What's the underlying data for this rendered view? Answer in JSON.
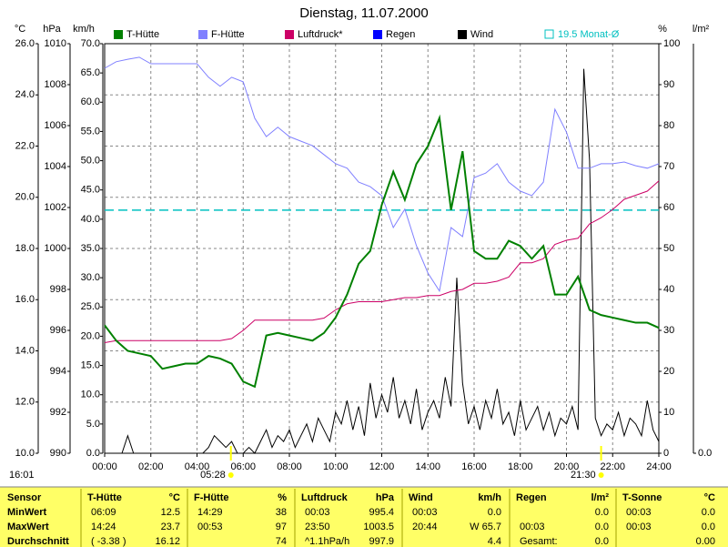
{
  "chart_data": {
    "type": "line",
    "title": "Dienstag, 11.07.2000",
    "updated": "16:01",
    "grid": true,
    "xlim": [
      0,
      24
    ],
    "xticks": [
      {
        "value": 0,
        "label": "00:00"
      },
      {
        "value": 2,
        "label": "02:00"
      },
      {
        "value": 4,
        "label": "04:00"
      },
      {
        "value": 6,
        "label": "06:00"
      },
      {
        "value": 8,
        "label": "08:00"
      },
      {
        "value": 10,
        "label": "10:00"
      },
      {
        "value": 12,
        "label": "12:00"
      },
      {
        "value": 14,
        "label": "14:00"
      },
      {
        "value": 16,
        "label": "16:00"
      },
      {
        "value": 18,
        "label": "18:00"
      },
      {
        "value": 20,
        "label": "20:00"
      },
      {
        "value": 22,
        "label": "22:00"
      },
      {
        "value": 24,
        "label": "24:00"
      }
    ],
    "axes": [
      {
        "id": "temp",
        "label": "°C",
        "side": "left",
        "lim": [
          10,
          26
        ],
        "ticks": [
          {
            "value": 10,
            "label": "10.0"
          },
          {
            "value": 12,
            "label": "12.0"
          },
          {
            "value": 14,
            "label": "14.0"
          },
          {
            "value": 16,
            "label": "16.0"
          },
          {
            "value": 18,
            "label": "18.0"
          },
          {
            "value": 20,
            "label": "20.0"
          },
          {
            "value": 22,
            "label": "22.0"
          },
          {
            "value": 24,
            "label": "24.0"
          },
          {
            "value": 26,
            "label": "26.0"
          }
        ]
      },
      {
        "id": "hpa",
        "label": "hPa",
        "side": "left",
        "lim": [
          990,
          1010
        ],
        "ticks": [
          990,
          992,
          994,
          996,
          998,
          1000,
          1002,
          1004,
          1006,
          1008,
          1010
        ]
      },
      {
        "id": "kmh",
        "label": "km/h",
        "side": "left",
        "lim": [
          0,
          70
        ],
        "ticks": [
          {
            "value": 0,
            "label": "0.0"
          },
          {
            "value": 5,
            "label": "5.0"
          },
          {
            "value": 10,
            "label": "10.0"
          },
          {
            "value": 15,
            "label": "15.0"
          },
          {
            "value": 20,
            "label": "20.0"
          },
          {
            "value": 25,
            "label": "25.0"
          },
          {
            "value": 30,
            "label": "30.0"
          },
          {
            "value": 35,
            "label": "35.0"
          },
          {
            "value": 40,
            "label": "40.0"
          },
          {
            "value": 45,
            "label": "45.0"
          },
          {
            "value": 50,
            "label": "50.0"
          },
          {
            "value": 55,
            "label": "55.0"
          },
          {
            "value": 60,
            "label": "60.0"
          },
          {
            "value": 65,
            "label": "65.0"
          },
          {
            "value": 70,
            "label": "70.0"
          }
        ]
      },
      {
        "id": "pct",
        "label": "%",
        "side": "right",
        "lim": [
          0,
          100
        ],
        "ticks": [
          0,
          10,
          20,
          30,
          40,
          50,
          60,
          70,
          80,
          90,
          100
        ]
      },
      {
        "id": "rain",
        "label": "l/m²",
        "side": "right",
        "ticks": [
          {
            "value": 0,
            "label": "0.0"
          }
        ]
      }
    ],
    "x": [
      0,
      0.5,
      1,
      1.5,
      2,
      2.5,
      3,
      3.5,
      4,
      4.5,
      5,
      5.5,
      6,
      6.5,
      7,
      7.5,
      8,
      8.5,
      9,
      9.5,
      10,
      10.5,
      11,
      11.5,
      12,
      12.5,
      13,
      13.5,
      14,
      14.5,
      15,
      15.5,
      16,
      16.5,
      17,
      17.5,
      18,
      18.5,
      19,
      19.5,
      20,
      20.5,
      21,
      21.5,
      22,
      22.5,
      23,
      23.5,
      24
    ],
    "series": [
      {
        "name": "T-Hütte",
        "color": "#008000",
        "axis": "temp",
        "values": [
          15.0,
          14.4,
          14.0,
          13.9,
          13.8,
          13.3,
          13.4,
          13.5,
          13.5,
          13.8,
          13.7,
          13.5,
          12.8,
          12.6,
          14.6,
          14.7,
          14.6,
          14.5,
          14.4,
          14.7,
          15.3,
          16.2,
          17.4,
          17.9,
          19.7,
          21.0,
          19.9,
          21.3,
          22.0,
          23.1,
          19.5,
          21.8,
          17.9,
          17.6,
          17.6,
          18.3,
          18.1,
          17.6,
          18.1,
          16.2,
          16.2,
          16.9,
          15.6,
          15.4,
          15.3,
          15.2,
          15.1,
          15.1,
          14.9
        ]
      },
      {
        "name": "F-Hütte",
        "color": "#8080ff",
        "axis": "pct",
        "values": [
          94,
          95.6,
          96.2,
          96.7,
          95.1,
          95.1,
          95.1,
          95.1,
          95.1,
          91.8,
          89.6,
          91.8,
          90.7,
          81.8,
          77.3,
          79.6,
          77.3,
          76.2,
          75.1,
          72.9,
          70.7,
          69.6,
          66.2,
          65.1,
          62.9,
          55.1,
          59.6,
          50.7,
          44,
          39.6,
          55.1,
          52.9,
          67.3,
          68.4,
          70.7,
          66.2,
          64,
          62.9,
          66.2,
          84,
          78.4,
          69.6,
          69.6,
          70.7,
          70.7,
          71.1,
          70.2,
          69.6,
          70.7
        ]
      },
      {
        "name": "Luftdruck*",
        "color": "#cc0066",
        "axis": "hpa",
        "values": [
          995.4,
          995.5,
          995.5,
          995.5,
          995.5,
          995.5,
          995.5,
          995.5,
          995.5,
          995.5,
          995.5,
          995.6,
          996.0,
          996.5,
          996.5,
          996.5,
          996.5,
          996.5,
          996.5,
          996.6,
          997.0,
          997.3,
          997.4,
          997.4,
          997.4,
          997.5,
          997.6,
          997.6,
          997.7,
          997.7,
          997.9,
          998.0,
          998.3,
          998.3,
          998.4,
          998.6,
          999.3,
          999.3,
          999.5,
          1000.2,
          1000.4,
          1000.5,
          1001.2,
          1001.5,
          1001.9,
          1002.4,
          1002.6,
          1002.8,
          1003.3
        ]
      },
      {
        "name": "Regen",
        "color": "#0000ff",
        "axis": "rain"
      },
      {
        "name": "Wind",
        "color": "#000000",
        "axis": "kmh",
        "x": [
          0,
          0.25,
          0.5,
          0.75,
          1,
          1.25,
          1.5,
          1.75,
          2,
          2.25,
          2.5,
          2.75,
          3,
          3.25,
          3.5,
          3.75,
          4,
          4.25,
          4.5,
          4.75,
          5,
          5.25,
          5.5,
          5.75,
          6,
          6.25,
          6.5,
          6.75,
          7,
          7.25,
          7.5,
          7.75,
          8,
          8.25,
          8.5,
          8.75,
          9,
          9.25,
          9.5,
          9.75,
          10,
          10.25,
          10.5,
          10.75,
          11,
          11.25,
          11.5,
          11.75,
          12,
          12.25,
          12.5,
          12.75,
          13,
          13.25,
          13.5,
          13.75,
          14,
          14.25,
          14.5,
          14.75,
          15,
          15.25,
          15.5,
          15.75,
          16,
          16.25,
          16.5,
          16.75,
          17,
          17.25,
          17.5,
          17.75,
          18,
          18.25,
          18.5,
          18.75,
          19,
          19.25,
          19.5,
          19.75,
          20,
          20.25,
          20.5,
          20.75,
          21,
          21.25,
          21.5,
          21.75,
          22,
          22.25,
          22.5,
          22.75,
          23,
          23.25,
          23.5,
          23.75,
          24
        ],
        "values": [
          0,
          0,
          0,
          0,
          3,
          0,
          0,
          0,
          0,
          0,
          0,
          0,
          0,
          0,
          0,
          0,
          0,
          0,
          1,
          3,
          2,
          1,
          2,
          0,
          0,
          1,
          0,
          2,
          4,
          1,
          3,
          2,
          4,
          1,
          3,
          5,
          2,
          6,
          4,
          2,
          7,
          5,
          9,
          4,
          8,
          3,
          12,
          6,
          10,
          7,
          13,
          6,
          9,
          5,
          11,
          4,
          7,
          9,
          6,
          13,
          8,
          30,
          12,
          5,
          8,
          4,
          9,
          6,
          11,
          5,
          7,
          3,
          9,
          4,
          6,
          8,
          4,
          7,
          3,
          6,
          5,
          8,
          4,
          65.7,
          50,
          6,
          3,
          5,
          4,
          7,
          3,
          6,
          5,
          3,
          9,
          4,
          2
        ]
      }
    ],
    "reference_line": {
      "value": 19.5,
      "axis": "temp",
      "label": "19.5 Monat-Ø",
      "color": "#00c0c0"
    },
    "markers": [
      {
        "x": 5.4667,
        "label": "05:28",
        "color": "#ffff00"
      },
      {
        "x": 21.5,
        "label": "21:30",
        "color": "#ffff00"
      }
    ]
  },
  "table": {
    "columns": [
      {
        "name": "Sensor"
      },
      {
        "name": "T-Hütte",
        "unit": "°C"
      },
      {
        "name": "F-Hütte",
        "unit": "%"
      },
      {
        "name": "Luftdruck",
        "unit": "hPa"
      },
      {
        "name": "Wind",
        "unit": "km/h"
      },
      {
        "name": "Regen",
        "unit": "l/m²"
      },
      {
        "name": "T-Sonne",
        "unit": "°C"
      }
    ],
    "rows": [
      {
        "label": "MinWert",
        "cells": [
          {
            "time": "06:09",
            "value": "12.5"
          },
          {
            "time": "14:29",
            "value": "38"
          },
          {
            "time": "00:03",
            "value": "995.4"
          },
          {
            "time": "00:03",
            "value": "0.0"
          },
          {
            "value": "0.0"
          },
          {
            "time": "00:03",
            "value": "0.0"
          }
        ]
      },
      {
        "label": "MaxWert",
        "cells": [
          {
            "time": "14:24",
            "value": "23.7"
          },
          {
            "time": "00:53",
            "value": "97"
          },
          {
            "time": "23:50",
            "value": "1003.5"
          },
          {
            "time": "20:44",
            "value": "W 65.7"
          },
          {
            "time": "00:03",
            "value": "0.0"
          },
          {
            "time": "00:03",
            "value": "0.0"
          }
        ]
      },
      {
        "label": "Durchschnitt",
        "cells": [
          {
            "time": "( -3.38 )",
            "value": "16.12"
          },
          {
            "value": "74"
          },
          {
            "time": "^1.1hPa/h",
            "value": "997.9"
          },
          {
            "value": "4.4"
          },
          {
            "time": "Gesamt:",
            "value": "0.0"
          },
          {
            "value": "0.00"
          }
        ]
      }
    ]
  }
}
